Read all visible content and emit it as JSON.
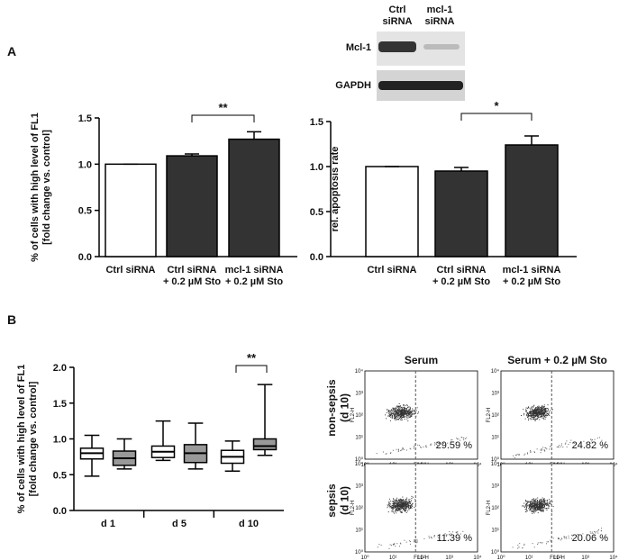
{
  "panels": [
    "A",
    "B"
  ],
  "blot": {
    "lanes": [
      "Ctrl\nsiRNA",
      "mcl-1\nsiRNA"
    ],
    "bands": [
      "Mcl-1",
      "GAPDH"
    ]
  },
  "chart_data": [
    {
      "type": "bar",
      "ylabel": "% of cells with high level of FL1\n[fold change vs. control]",
      "categories": [
        "Ctrl siRNA",
        "Ctrl siRNA\n+ 0.2 µM Sto",
        "mcl-1 siRNA\n+ 0.2 µM Sto"
      ],
      "values": [
        1.0,
        1.09,
        1.27
      ],
      "errors": [
        0,
        0.02,
        0.08
      ],
      "colors": [
        "#ffffff",
        "#333333",
        "#333333"
      ],
      "ylim": [
        0,
        1.5
      ],
      "yticks": [
        {
          "value": 0,
          "label": "0.0"
        },
        {
          "value": 0.5,
          "label": "0.5"
        },
        {
          "value": 1,
          "label": "1.0"
        },
        {
          "value": 1.5,
          "label": "1.5"
        }
      ],
      "annotation": "**"
    },
    {
      "type": "bar",
      "ylabel": "rel. apoptosis rate",
      "categories": [
        "Ctrl siRNA",
        "Ctrl siRNA\n+ 0.2 µM Sto",
        "mcl-1 siRNA\n+ 0.2 µM Sto"
      ],
      "values": [
        1.0,
        0.95,
        1.24
      ],
      "errors": [
        0,
        0.04,
        0.1
      ],
      "colors": [
        "#ffffff",
        "#333333",
        "#333333"
      ],
      "ylim": [
        0,
        1.5
      ],
      "yticks": [
        {
          "value": 0,
          "label": "0.0"
        },
        {
          "value": 0.5,
          "label": "0.5"
        },
        {
          "value": 1,
          "label": "1.0"
        },
        {
          "value": 1.5,
          "label": "1.5"
        }
      ],
      "annotation": "*"
    },
    {
      "type": "box",
      "ylabel": "% of cells with high level of FL1\n[fold change vs. control]",
      "categories": [
        "d 1",
        "d 5",
        "d 10"
      ],
      "series": [
        {
          "color": "#ffffff",
          "boxes": [
            {
              "min": 0.48,
              "q1": 0.72,
              "median": 0.8,
              "q3": 0.87,
              "max": 1.05
            },
            {
              "min": 0.7,
              "q1": 0.74,
              "median": 0.82,
              "q3": 0.9,
              "max": 1.25
            },
            {
              "min": 0.55,
              "q1": 0.66,
              "median": 0.75,
              "q3": 0.84,
              "max": 0.97
            }
          ]
        },
        {
          "color": "#999999",
          "boxes": [
            {
              "min": 0.58,
              "q1": 0.63,
              "median": 0.73,
              "q3": 0.83,
              "max": 1.0
            },
            {
              "min": 0.58,
              "q1": 0.67,
              "median": 0.8,
              "q3": 0.92,
              "max": 1.22
            },
            {
              "min": 0.77,
              "q1": 0.85,
              "median": 0.9,
              "q3": 1.0,
              "max": 1.76
            }
          ]
        }
      ],
      "ylim": [
        0,
        2
      ],
      "yticks": [
        {
          "value": 0,
          "label": "0.0"
        },
        {
          "value": 0.5,
          "label": "0.5"
        },
        {
          "value": 1,
          "label": "1.0"
        },
        {
          "value": 1.5,
          "label": "1.5"
        },
        {
          "value": 2,
          "label": "2.0"
        }
      ],
      "annotation": "**"
    }
  ],
  "flow": {
    "columns": [
      "Serum",
      "Serum + 0.2 µM Sto"
    ],
    "rows": [
      "non-sepsis\n(d 10)",
      "sepsis\n(d 10)"
    ],
    "percentages": [
      [
        "29.59 %",
        "24.82 %"
      ],
      [
        "11.39 %",
        "20.06 %"
      ]
    ],
    "xlabel": "FL1-H",
    "ylabel": "FL2-H",
    "ticks": [
      "10⁰",
      "10¹",
      "10²",
      "10³",
      "10⁴"
    ]
  }
}
